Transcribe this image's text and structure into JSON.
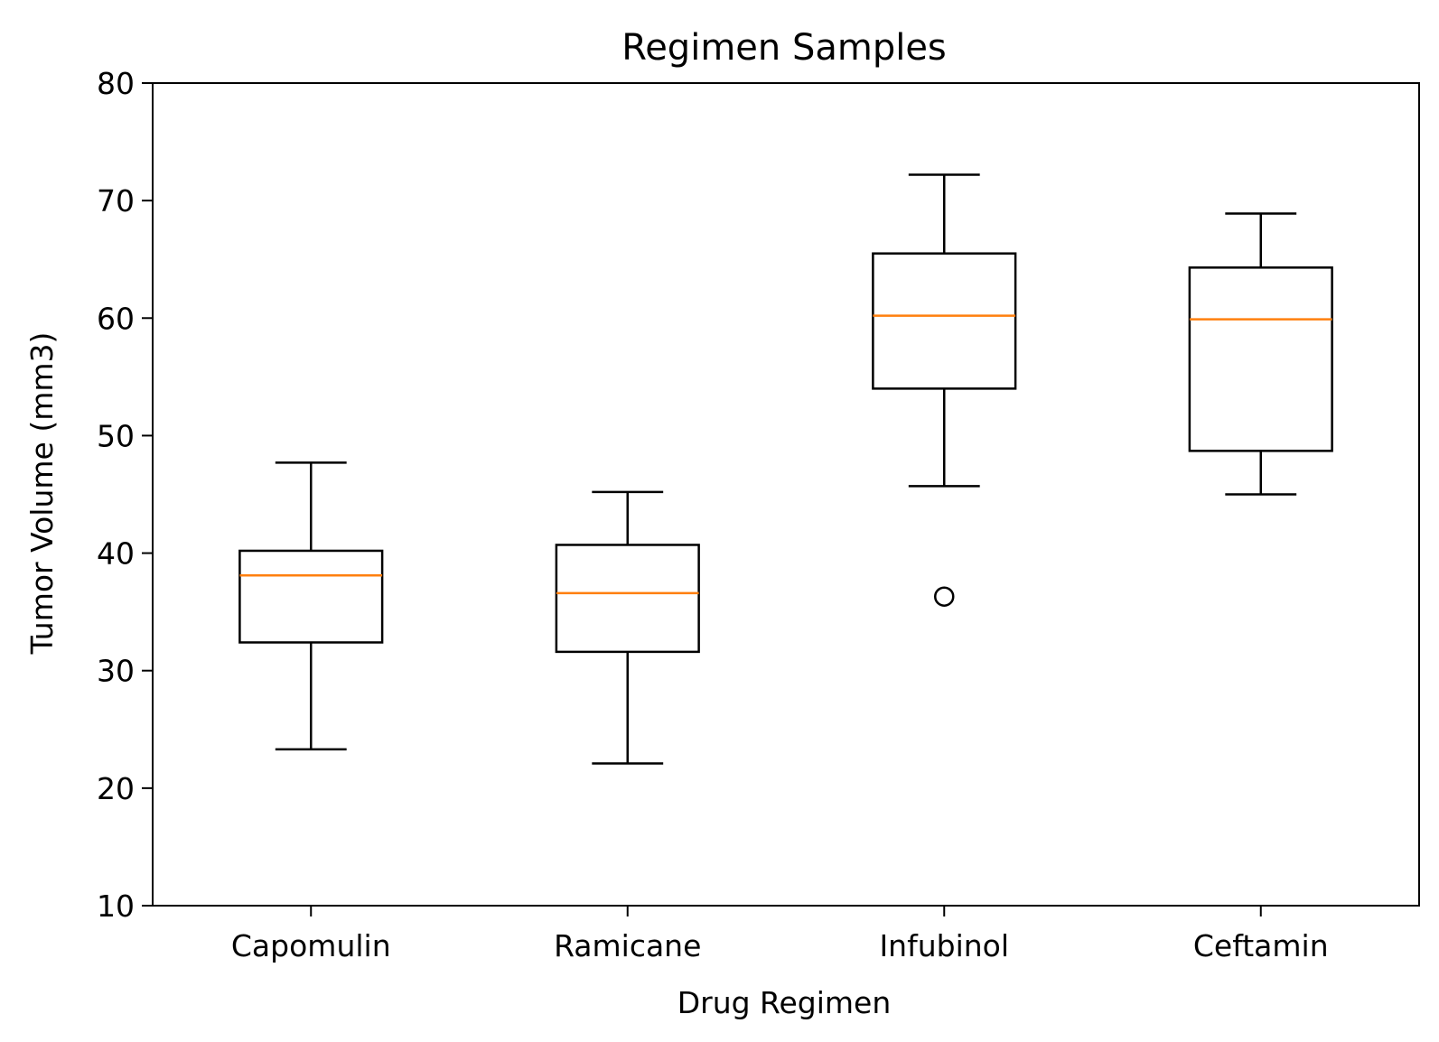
{
  "chart_data": {
    "type": "box",
    "title": "Regimen Samples",
    "xlabel": "Drug Regimen",
    "ylabel": "Tumor Volume (mm3)",
    "ylim": [
      10,
      80
    ],
    "yticks": [
      10,
      20,
      30,
      40,
      50,
      60,
      70,
      80
    ],
    "grid": false,
    "categories": [
      "Capomulin",
      "Ramicane",
      "Infubinol",
      "Ceftamin"
    ],
    "boxes": [
      {
        "name": "Capomulin",
        "whisker_low": 23.3,
        "q1": 32.4,
        "median": 38.1,
        "q3": 40.2,
        "whisker_high": 47.7,
        "outliers": []
      },
      {
        "name": "Ramicane",
        "whisker_low": 22.1,
        "q1": 31.6,
        "median": 36.6,
        "q3": 40.7,
        "whisker_high": 45.2,
        "outliers": []
      },
      {
        "name": "Infubinol",
        "whisker_low": 45.7,
        "q1": 54.0,
        "median": 60.2,
        "q3": 65.5,
        "whisker_high": 72.2,
        "outliers": [
          36.3
        ]
      },
      {
        "name": "Ceftamin",
        "whisker_low": 45.0,
        "q1": 48.7,
        "median": 59.9,
        "q3": 64.3,
        "whisker_high": 68.9,
        "outliers": []
      }
    ],
    "colors": {
      "box": "#000000",
      "median": "#ff7f0e"
    }
  }
}
